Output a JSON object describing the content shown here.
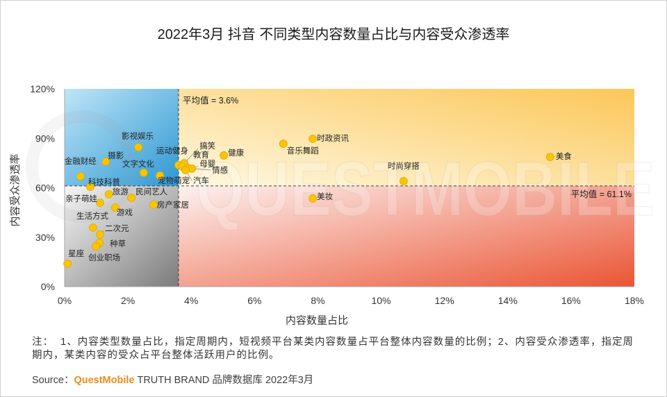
{
  "chart_data": {
    "type": "scatter",
    "title": "2022年3月 抖音 不同类型内容数量占比与内容受众渗透率",
    "xlabel": "内容数量占比",
    "ylabel": "内容受众渗透率",
    "xlim": [
      0,
      18
    ],
    "ylim": [
      0,
      120
    ],
    "x_tick_labels": [
      "0%",
      "2%",
      "4%",
      "6%",
      "8%",
      "10%",
      "12%",
      "14%",
      "16%",
      "18%"
    ],
    "y_tick_labels": [
      "0%",
      "30%",
      "60%",
      "90%",
      "120%"
    ],
    "grid": false,
    "reference_lines": [
      {
        "axis": "x",
        "value": 3.6,
        "label": "平均值 = 3.6%"
      },
      {
        "axis": "y",
        "value": 61.1,
        "label": "平均值 = 61.1%"
      }
    ],
    "point_color": "#f7c600",
    "point_edge_color": "#e3a600",
    "quadrant_colors": {
      "top_left": [
        "#bfe5f7",
        "#2d98d3"
      ],
      "top_right": [
        "#fff8e2",
        "#fbc758"
      ],
      "bottom_left": [
        "#f6f6f6",
        "#7b7b7b"
      ],
      "bottom_right": [
        "#fdf1ef",
        "#ea5535"
      ]
    },
    "points": [
      {
        "label": "美食",
        "x": 15.34,
        "y": 78.7
      },
      {
        "label": "时政资讯",
        "x": 7.84,
        "y": 89.7
      },
      {
        "label": "音乐舞蹈",
        "x": 6.91,
        "y": 86.7
      },
      {
        "label": "时尚穿搭",
        "x": 10.71,
        "y": 64.0
      },
      {
        "label": "美妆",
        "x": 7.84,
        "y": 53.5
      },
      {
        "label": "健康",
        "x": 5.03,
        "y": 79.6
      },
      {
        "label": "搞笑",
        "x": 3.78,
        "y": 74.9
      },
      {
        "label": "运动健身",
        "x": 3.6,
        "y": 73.7
      },
      {
        "label": "教育",
        "x": 3.71,
        "y": 72.8
      },
      {
        "label": "母婴",
        "x": 3.89,
        "y": 72.0
      },
      {
        "label": "情感",
        "x": 4.02,
        "y": 71.6
      },
      {
        "label": "宠物萌宠",
        "x": 3.01,
        "y": 67.4
      },
      {
        "label": "汽车",
        "x": 3.82,
        "y": 70.7
      },
      {
        "label": "影视娱乐",
        "x": 2.33,
        "y": 84.6
      },
      {
        "label": "摄影",
        "x": 1.3,
        "y": 75.8
      },
      {
        "label": "文字文化",
        "x": 2.5,
        "y": 69.1
      },
      {
        "label": "金融财经",
        "x": 0.5,
        "y": 66.9
      },
      {
        "label": "科技科普",
        "x": 0.81,
        "y": 60.6
      },
      {
        "label": "旅游",
        "x": 1.4,
        "y": 56.0
      },
      {
        "label": "民间艺人",
        "x": 2.11,
        "y": 53.9
      },
      {
        "label": "亲子萌娃",
        "x": 1.12,
        "y": 50.9
      },
      {
        "label": "游戏",
        "x": 1.6,
        "y": 48.0
      },
      {
        "label": "房产家居",
        "x": 2.81,
        "y": 49.7
      },
      {
        "label": "生活方式",
        "x": 0.9,
        "y": 35.8
      },
      {
        "label": "二次元",
        "x": 1.12,
        "y": 31.6
      },
      {
        "label": "种草",
        "x": 1.1,
        "y": 26.5
      },
      {
        "label": "创业职场",
        "x": 0.99,
        "y": 24.4
      },
      {
        "label": "星座",
        "x": 0.09,
        "y": 13.9
      }
    ]
  },
  "footnote": "注：  1、内容类型数量占比，指定周期内，短视频平台某类内容数量占平台整体内容数量的比例；2、内容受众渗透率，指定周期内，某类内容的受众占平台整体活跃用户的比例。",
  "source": {
    "prefix": "Source：",
    "brand": "QuestMobile",
    "rest": "TRUTH BRAND 品牌数据库 2022年3月",
    "brand_color": "#f08a1c"
  },
  "watermark": "QUESTMOBILE"
}
